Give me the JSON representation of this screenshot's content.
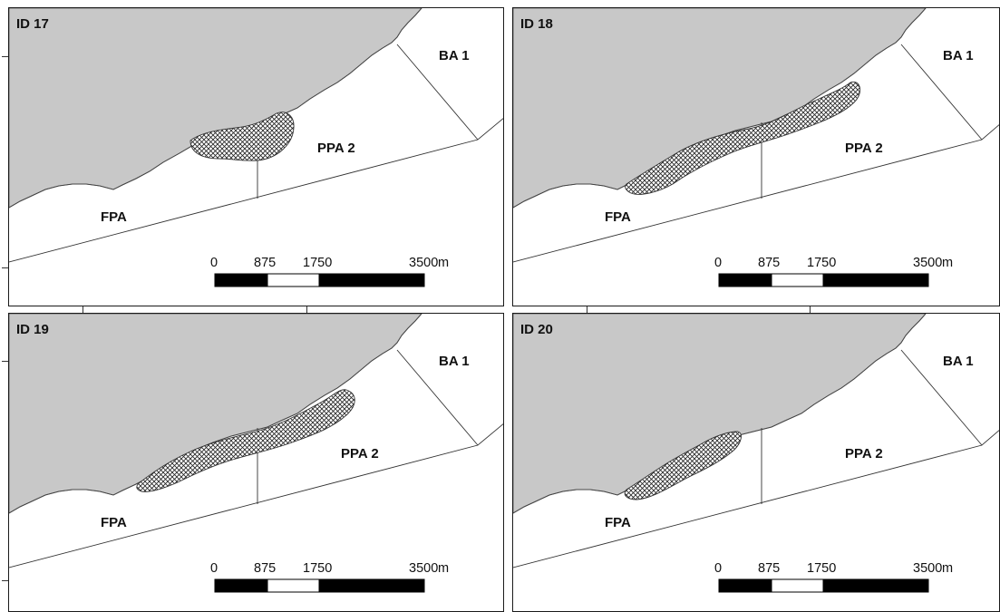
{
  "colors": {
    "land": "#c8c8c8",
    "sea": "#ffffff",
    "line": "#333333",
    "hatch": "#222222",
    "frame": "#1a1a1a",
    "scale_dark": "#000000",
    "scale_light": "#ffffff"
  },
  "zones": {
    "ba": "BA 1",
    "ppa": "PPA 2",
    "fpa": "FPA"
  },
  "scale_bar": {
    "labels": [
      "0",
      "875",
      "1750",
      "3500"
    ],
    "unit": "m",
    "segments": [
      {
        "from": 0,
        "to": 875,
        "fill": "dark"
      },
      {
        "from": 875,
        "to": 1750,
        "fill": "light"
      },
      {
        "from": 1750,
        "to": 3500,
        "fill": "dark"
      }
    ]
  },
  "panels": [
    {
      "id": "ID 17",
      "extent": "center-short"
    },
    {
      "id": "ID 18",
      "extent": "long-west-east"
    },
    {
      "id": "ID 19",
      "extent": "long-center"
    },
    {
      "id": "ID 20",
      "extent": "west-short"
    }
  ]
}
